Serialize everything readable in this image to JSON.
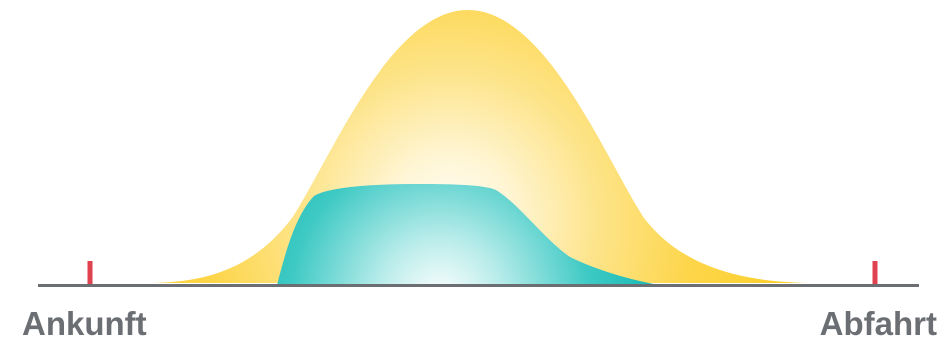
{
  "labels": {
    "arrival": "Ankunft",
    "departure": "Abfahrt"
  },
  "colors": {
    "baseline": "#6b6e73",
    "tick_marks": "#e0434f",
    "bell_curve": "#fdd23c",
    "bell_curve_center": "#fffdf5",
    "teal_area": "#0fb8b3",
    "teal_area_light": "#ffffff",
    "label_text": "#6b6e73"
  }
}
